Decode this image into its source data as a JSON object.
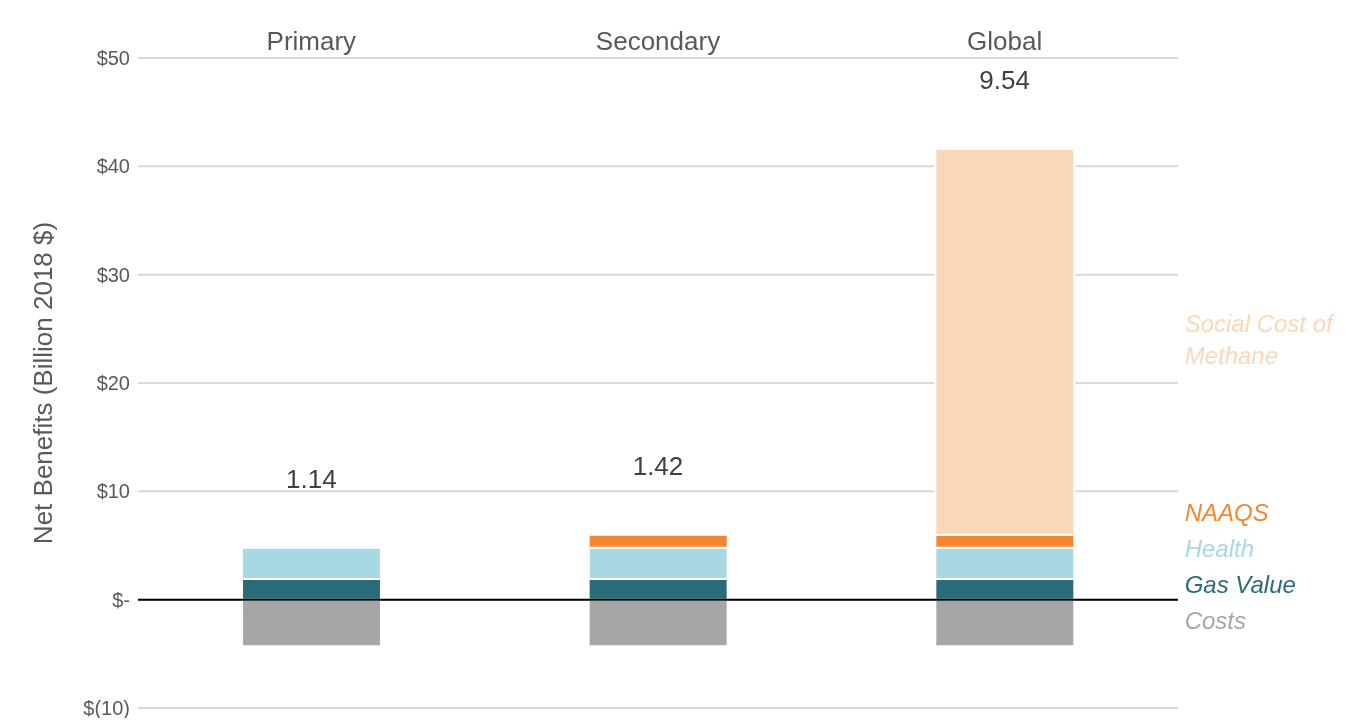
{
  "chart_data": {
    "type": "bar",
    "stacked": true,
    "ylabel": "Net Benefits (Billion 2018 $)",
    "categories": [
      "Primary",
      "Secondary",
      "Global"
    ],
    "series": [
      {
        "name": "Costs",
        "color": "#a6a6a6",
        "values": [
          -4.3,
          -4.3,
          -4.3
        ]
      },
      {
        "name": "Gas Value",
        "color": "#2a6b78",
        "values": [
          1.9,
          1.9,
          1.9
        ]
      },
      {
        "name": "Health",
        "color": "#a8d8e2",
        "values": [
          2.9,
          2.9,
          2.9
        ]
      },
      {
        "name": "NAAQS",
        "color": "#f58630",
        "values": [
          null,
          1.2,
          1.2
        ]
      },
      {
        "name": "Social Cost of Methane",
        "color": "#fbd7b9",
        "values": [
          null,
          null,
          35.6
        ]
      }
    ],
    "annotations": [
      "1.14",
      "1.42",
      "9.54"
    ],
    "ylim": [
      -10,
      50
    ],
    "yticks": [
      {
        "value": -10,
        "label": "$(10)"
      },
      {
        "value": 0,
        "label": "$-"
      },
      {
        "value": 10,
        "label": "$10"
      },
      {
        "value": 20,
        "label": "$20"
      },
      {
        "value": 30,
        "label": "$30"
      },
      {
        "value": 40,
        "label": "$40"
      },
      {
        "value": 50,
        "label": "$50"
      }
    ],
    "grid": "y",
    "legend": false
  }
}
